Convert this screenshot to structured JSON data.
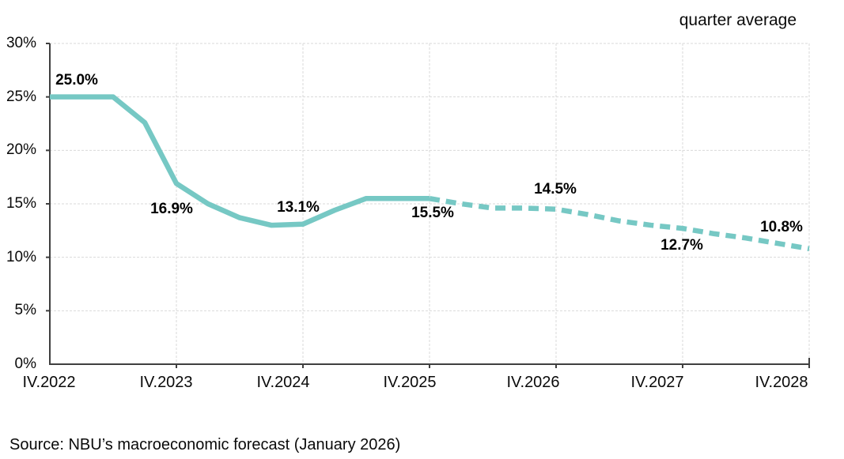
{
  "title": "quarter average",
  "source": "Source: NBU’s macroeconomic forecast (January 2026)",
  "colors": {
    "line": "#76C8C4",
    "grid": "#D9D9D9",
    "axis": "#3F3F3F",
    "label": "#000000"
  },
  "chart_data": {
    "type": "line",
    "title": "quarter average",
    "xlabel": "",
    "ylabel": "",
    "ylim": [
      0,
      30
    ],
    "y_step": 5,
    "grid": true,
    "x": [
      "IV.2022",
      "I.2023",
      "II.2023",
      "III.2023",
      "IV.2023",
      "I.2024",
      "II.2024",
      "III.2024",
      "IV.2024",
      "I.2025",
      "II.2025",
      "III.2025",
      "IV.2025",
      "I.2026",
      "II.2026",
      "III.2026",
      "IV.2026",
      "I.2027",
      "II.2027",
      "III.2027",
      "IV.2027",
      "I.2028",
      "II.2028",
      "III.2028",
      "IV.2028"
    ],
    "series": [
      {
        "name": "quarter average",
        "values": [
          25.0,
          25.0,
          25.0,
          22.6,
          16.9,
          15.0,
          13.7,
          13.0,
          13.1,
          14.4,
          15.5,
          15.5,
          15.5,
          15.0,
          14.6,
          14.6,
          14.5,
          14.0,
          13.4,
          13.0,
          12.7,
          12.2,
          11.8,
          11.3,
          10.8
        ],
        "solid_until_index": 12,
        "forecast_style": "dashed"
      }
    ],
    "y_tick_labels": [
      "30%",
      "25%",
      "20%",
      "15%",
      "10%",
      "5%",
      "0%"
    ],
    "x_tick_labels": [
      "IV.2022",
      "IV.2023",
      "IV.2024",
      "IV.2025",
      "IV.2026",
      "IV.2027",
      "IV.2028"
    ],
    "point_labels": [
      {
        "x": "IV.2022",
        "value": 25.0,
        "text": "25.0%"
      },
      {
        "x": "IV.2023",
        "value": 16.9,
        "text": "16.9%"
      },
      {
        "x": "IV.2024",
        "value": 13.1,
        "text": "13.1%"
      },
      {
        "x": "IV.2025",
        "value": 15.5,
        "text": "15.5%"
      },
      {
        "x": "IV.2026",
        "value": 14.5,
        "text": "14.5%"
      },
      {
        "x": "IV.2027",
        "value": 12.7,
        "text": "12.7%"
      },
      {
        "x": "IV.2028",
        "value": 10.8,
        "text": "10.8%"
      }
    ]
  }
}
